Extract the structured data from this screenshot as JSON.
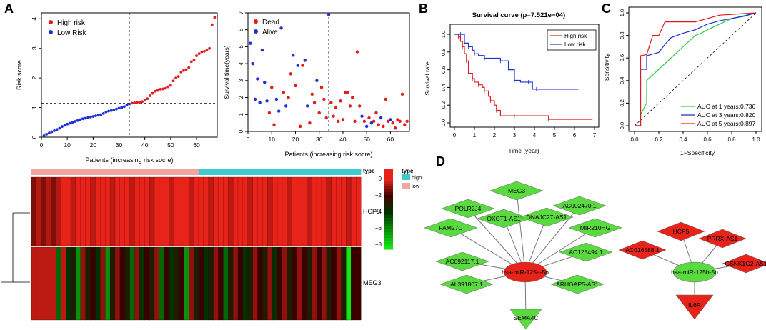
{
  "panels": {
    "a": "A",
    "b": "B",
    "c": "C",
    "d": "D"
  },
  "chart_data": [
    {
      "id": "risk",
      "type": "scatter",
      "ylabel": "Risk score",
      "xlabel": "Patients (increasing risk socre)",
      "xlim": [
        0,
        68
      ],
      "ylim": [
        0,
        4.2
      ],
      "xticks": [
        "0",
        "10",
        "20",
        "30",
        "40",
        "50",
        "60"
      ],
      "yticks": [
        "0",
        "1",
        "2",
        "3",
        "4"
      ],
      "cutoff_x": 34,
      "cutoff_y": 1.15,
      "legend": [
        "High risk",
        "Low Risk"
      ],
      "colors": {
        "high": "#e41a1c",
        "low": "#1f2fd6"
      },
      "y": [
        0.05,
        0.1,
        0.14,
        0.18,
        0.22,
        0.26,
        0.3,
        0.36,
        0.4,
        0.44,
        0.47,
        0.5,
        0.53,
        0.56,
        0.59,
        0.62,
        0.64,
        0.66,
        0.68,
        0.7,
        0.72,
        0.74,
        0.76,
        0.8,
        0.85,
        0.88,
        0.9,
        0.92,
        0.95,
        0.98,
        1.0,
        1.03,
        1.08,
        1.12,
        1.15,
        1.16,
        1.17,
        1.18,
        1.2,
        1.25,
        1.3,
        1.4,
        1.48,
        1.55,
        1.58,
        1.62,
        1.63,
        1.65,
        1.7,
        1.75,
        1.9,
        2.0,
        2.05,
        2.2,
        2.25,
        2.28,
        2.35,
        2.55,
        2.6,
        2.75,
        2.82,
        2.88,
        2.9,
        2.95,
        3.0,
        3.8,
        4.05
      ]
    },
    {
      "id": "survival-time",
      "type": "scatter",
      "ylabel": "Survival time(years)",
      "xlabel": "Patients (increasing risk socre)",
      "xlim": [
        0,
        68
      ],
      "ylim": [
        0,
        7
      ],
      "xticks": [
        "0",
        "10",
        "20",
        "30",
        "40",
        "50",
        "60"
      ],
      "yticks": [
        "0",
        "1",
        "2",
        "3",
        "4",
        "5",
        "6",
        "7"
      ],
      "cutoff_x": 34,
      "legend": [
        "Dead",
        "Alive"
      ],
      "colors": {
        "dead": "#e41a1c",
        "alive": "#1f2fd6"
      },
      "points": [
        {
          "x": 1,
          "y": 5.2,
          "s": "alive"
        },
        {
          "x": 2,
          "y": 4.0,
          "s": "alive"
        },
        {
          "x": 3,
          "y": 1.9,
          "s": "alive"
        },
        {
          "x": 4,
          "y": 3.1,
          "s": "alive"
        },
        {
          "x": 5,
          "y": 1.7,
          "s": "alive"
        },
        {
          "x": 6,
          "y": 4.8,
          "s": "alive"
        },
        {
          "x": 7,
          "y": 2.9,
          "s": "alive"
        },
        {
          "x": 8,
          "y": 1.8,
          "s": "alive"
        },
        {
          "x": 9,
          "y": 1.1,
          "s": "dead"
        },
        {
          "x": 10,
          "y": 2.6,
          "s": "dead"
        },
        {
          "x": 11,
          "y": 0.4,
          "s": "dead"
        },
        {
          "x": 12,
          "y": 1.9,
          "s": "alive"
        },
        {
          "x": 13,
          "y": 1.2,
          "s": "alive"
        },
        {
          "x": 14,
          "y": 6.1,
          "s": "alive"
        },
        {
          "x": 15,
          "y": 2.3,
          "s": "dead"
        },
        {
          "x": 16,
          "y": 1.5,
          "s": "alive"
        },
        {
          "x": 17,
          "y": 2.0,
          "s": "dead"
        },
        {
          "x": 18,
          "y": 3.4,
          "s": "dead"
        },
        {
          "x": 19,
          "y": 4.5,
          "s": "alive"
        },
        {
          "x": 20,
          "y": 2.7,
          "s": "dead"
        },
        {
          "x": 21,
          "y": 3.9,
          "s": "alive"
        },
        {
          "x": 22,
          "y": 0.3,
          "s": "dead"
        },
        {
          "x": 23,
          "y": 3.9,
          "s": "dead"
        },
        {
          "x": 24,
          "y": 4.2,
          "s": "alive"
        },
        {
          "x": 25,
          "y": 1.5,
          "s": "alive"
        },
        {
          "x": 26,
          "y": 0.5,
          "s": "dead"
        },
        {
          "x": 27,
          "y": 2.2,
          "s": "dead"
        },
        {
          "x": 28,
          "y": 1.7,
          "s": "dead"
        },
        {
          "x": 29,
          "y": 3.0,
          "s": "alive"
        },
        {
          "x": 30,
          "y": 1.1,
          "s": "dead"
        },
        {
          "x": 31,
          "y": 2.6,
          "s": "dead"
        },
        {
          "x": 32,
          "y": 1.9,
          "s": "dead"
        },
        {
          "x": 33,
          "y": 0.8,
          "s": "dead"
        },
        {
          "x": 34,
          "y": 6.9,
          "s": "alive"
        },
        {
          "x": 35,
          "y": 1.7,
          "s": "dead"
        },
        {
          "x": 36,
          "y": 0.9,
          "s": "dead"
        },
        {
          "x": 37,
          "y": 1.4,
          "s": "dead"
        },
        {
          "x": 38,
          "y": 0.6,
          "s": "dead"
        },
        {
          "x": 39,
          "y": 1.8,
          "s": "dead"
        },
        {
          "x": 40,
          "y": 0.7,
          "s": "dead"
        },
        {
          "x": 41,
          "y": 2.3,
          "s": "dead"
        },
        {
          "x": 42,
          "y": 2.3,
          "s": "dead"
        },
        {
          "x": 43,
          "y": 1.5,
          "s": "dead"
        },
        {
          "x": 44,
          "y": 2.0,
          "s": "dead"
        },
        {
          "x": 45,
          "y": 0.6,
          "s": "dead"
        },
        {
          "x": 46,
          "y": 4.7,
          "s": "dead"
        },
        {
          "x": 47,
          "y": 1.5,
          "s": "dead"
        },
        {
          "x": 48,
          "y": 0.9,
          "s": "alive"
        },
        {
          "x": 49,
          "y": 0.6,
          "s": "dead"
        },
        {
          "x": 50,
          "y": 0.3,
          "s": "alive"
        },
        {
          "x": 51,
          "y": 0.8,
          "s": "dead"
        },
        {
          "x": 52,
          "y": 0.5,
          "s": "alive"
        },
        {
          "x": 53,
          "y": 0.6,
          "s": "dead"
        },
        {
          "x": 54,
          "y": 1.1,
          "s": "dead"
        },
        {
          "x": 55,
          "y": 0.4,
          "s": "dead"
        },
        {
          "x": 56,
          "y": 0.8,
          "s": "alive"
        },
        {
          "x": 57,
          "y": 0.3,
          "s": "dead"
        },
        {
          "x": 58,
          "y": 1.9,
          "s": "dead"
        },
        {
          "x": 59,
          "y": 0.6,
          "s": "dead"
        },
        {
          "x": 60,
          "y": 0.7,
          "s": "alive"
        },
        {
          "x": 61,
          "y": 0.5,
          "s": "dead"
        },
        {
          "x": 62,
          "y": 0.2,
          "s": "dead"
        },
        {
          "x": 63,
          "y": 0.7,
          "s": "dead"
        },
        {
          "x": 64,
          "y": 0.6,
          "s": "dead"
        },
        {
          "x": 65,
          "y": 2.2,
          "s": "dead"
        },
        {
          "x": 66,
          "y": 0.4,
          "s": "dead"
        },
        {
          "x": 67,
          "y": 0.6,
          "s": "dead"
        }
      ]
    },
    {
      "id": "kaplan-meier",
      "type": "line",
      "title": "Survival curve (p=7.521e−04)",
      "xlabel": "Time (year)",
      "ylabel": "Survival rate",
      "xlim": [
        0,
        7
      ],
      "ylim": [
        0,
        1.05
      ],
      "xticks": [
        "0",
        "1",
        "2",
        "3",
        "4",
        "5",
        "6",
        "7"
      ],
      "yticks": [
        "0.0",
        "0.2",
        "0.4",
        "0.6",
        "0.8",
        "1.0"
      ],
      "series": [
        {
          "name": "High risk",
          "color": "#e41a1c",
          "x": [
            0,
            0.2,
            0.3,
            0.4,
            0.5,
            0.6,
            0.7,
            0.9,
            1.0,
            1.2,
            1.4,
            1.5,
            1.7,
            1.8,
            2.0,
            2.1,
            2.3,
            3.0,
            3.5,
            4.7,
            6.9
          ],
          "y": [
            1.0,
            0.97,
            0.92,
            0.86,
            0.78,
            0.7,
            0.56,
            0.5,
            0.46,
            0.43,
            0.4,
            0.36,
            0.3,
            0.25,
            0.2,
            0.14,
            0.08,
            0.08,
            0.08,
            0.04,
            0.04
          ]
        },
        {
          "name": "Low risk",
          "color": "#1f2fd6",
          "x": [
            0,
            0.3,
            0.5,
            0.7,
            0.9,
            1.0,
            1.2,
            1.5,
            2.0,
            2.3,
            2.7,
            3.0,
            3.3,
            3.7,
            3.9,
            4.1,
            6.2
          ],
          "y": [
            1.0,
            1.0,
            0.9,
            0.86,
            0.82,
            0.78,
            0.76,
            0.73,
            0.73,
            0.7,
            0.6,
            0.48,
            0.46,
            0.46,
            0.38,
            0.38,
            0.38
          ]
        }
      ]
    },
    {
      "id": "roc",
      "type": "line",
      "xlabel": "1−Specificity",
      "ylabel": "Sensitivity",
      "xlim": [
        0,
        1
      ],
      "ylim": [
        0,
        1
      ],
      "xticks": [
        "0.0",
        "0.2",
        "0.4",
        "0.6",
        "0.8",
        "1.0"
      ],
      "yticks": [
        "0.0",
        "0.2",
        "0.4",
        "0.6",
        "0.8",
        "1.0"
      ],
      "series": [
        {
          "name": "AUC at 1 years:0.736",
          "color": "#2ecc40",
          "x": [
            0,
            0.05,
            0.05,
            0.1,
            0.1,
            0.15,
            0.2,
            0.25,
            0.3,
            0.35,
            0.4,
            0.45,
            0.5,
            0.55,
            0.6,
            0.7,
            0.8,
            1.0
          ],
          "y": [
            0,
            0,
            0.1,
            0.2,
            0.4,
            0.45,
            0.5,
            0.55,
            0.6,
            0.65,
            0.7,
            0.75,
            0.8,
            0.82,
            0.85,
            0.9,
            0.95,
            1.0
          ]
        },
        {
          "name": "AUC at 3 years:0.820",
          "color": "#1f2fd6",
          "x": [
            0,
            0.05,
            0.05,
            0.1,
            0.1,
            0.2,
            0.25,
            0.3,
            0.4,
            0.5,
            0.6,
            0.7,
            0.8,
            0.9,
            1.0
          ],
          "y": [
            0,
            0,
            0.5,
            0.5,
            0.62,
            0.65,
            0.72,
            0.78,
            0.82,
            0.85,
            0.9,
            0.93,
            0.95,
            0.97,
            1.0
          ]
        },
        {
          "name": "AUC at 5 years:0.897",
          "color": "#e41a1c",
          "x": [
            0,
            0.05,
            0.05,
            0.1,
            0.15,
            0.2,
            0.25,
            0.3,
            0.5,
            0.6,
            0.7,
            1.0
          ],
          "y": [
            0,
            0,
            0.62,
            0.63,
            0.8,
            0.8,
            0.92,
            0.92,
            0.92,
            0.95,
            0.98,
            1.0
          ]
        }
      ]
    },
    {
      "id": "heatmap",
      "type": "heatmap",
      "rows": [
        "HCP5",
        "MEG3"
      ],
      "n_low": 34,
      "n_high": 33,
      "legend_title": "type",
      "legend_items": [
        "high",
        "low"
      ],
      "legend_colors": {
        "high": "#3ec8d0",
        "low": "#f1a5a0"
      },
      "scale_ticks": [
        "0",
        "−2",
        "−4",
        "−6",
        "−8"
      ],
      "meg3_values": [
        -0.5,
        -0.5,
        -0.5,
        -0.5,
        -0.5,
        -5,
        -0.5,
        -4,
        -3,
        -6,
        -1,
        -3,
        -2,
        -4,
        -1,
        -6,
        -3,
        -1,
        -2,
        -3,
        -5,
        -1,
        -4,
        -2,
        -3,
        -1,
        -5,
        -2,
        -4,
        -3,
        -2,
        -6,
        -1,
        -3,
        -2,
        -4,
        -3,
        -1,
        -2,
        -5,
        -3,
        -1,
        -2,
        -4,
        -3,
        -1,
        -2,
        -3,
        -1,
        -4,
        -2,
        -1,
        -3,
        -2,
        -1,
        -2,
        -3,
        -1,
        -2,
        -1,
        -3,
        -2,
        -1,
        -3,
        -8,
        -2,
        -2
      ]
    }
  ],
  "network": {
    "left_hub": "hsa-miR-125a-5p",
    "left_genes": [
      "MEG3",
      "AC002470.1",
      "MIR210HG",
      "AC125494.1",
      "ARHGAP5-AS1",
      "SEMA4C",
      "AL391807.1",
      "AC092117.1",
      "FAM27C",
      "POLR2J4",
      "OXCT1-AS1",
      "DNAJC27-AS1"
    ],
    "right_hub": "hsa-miR-125b-5p",
    "right_genes": [
      "HCP5",
      "PRRX-AS1",
      "GSNK1G2-AS1",
      "IL6R",
      "AC016588.1"
    ]
  }
}
